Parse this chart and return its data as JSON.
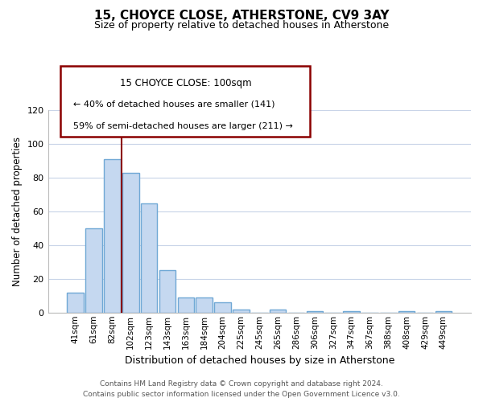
{
  "title": "15, CHOYCE CLOSE, ATHERSTONE, CV9 3AY",
  "subtitle": "Size of property relative to detached houses in Atherstone",
  "xlabel": "Distribution of detached houses by size in Atherstone",
  "ylabel": "Number of detached properties",
  "bar_labels": [
    "41sqm",
    "61sqm",
    "82sqm",
    "102sqm",
    "123sqm",
    "143sqm",
    "163sqm",
    "184sqm",
    "204sqm",
    "225sqm",
    "245sqm",
    "265sqm",
    "286sqm",
    "306sqm",
    "327sqm",
    "347sqm",
    "367sqm",
    "388sqm",
    "408sqm",
    "429sqm",
    "449sqm"
  ],
  "bar_values": [
    12,
    50,
    91,
    83,
    65,
    25,
    9,
    9,
    6,
    2,
    0,
    2,
    0,
    1,
    0,
    1,
    0,
    0,
    1,
    0,
    1
  ],
  "bar_color": "#c5d8f0",
  "bar_edge_color": "#6fa8d5",
  "bar_linewidth": 1.0,
  "vline_x_index": 2,
  "vline_color": "#8b0000",
  "ylim": [
    0,
    120
  ],
  "yticks": [
    0,
    20,
    40,
    60,
    80,
    100,
    120
  ],
  "annotation_title": "15 CHOYCE CLOSE: 100sqm",
  "annotation_line1": "← 40% of detached houses are smaller (141)",
  "annotation_line2": "59% of semi-detached houses are larger (211) →",
  "footer_line1": "Contains HM Land Registry data © Crown copyright and database right 2024.",
  "footer_line2": "Contains public sector information licensed under the Open Government Licence v3.0.",
  "background_color": "#ffffff",
  "grid_color": "#c8d4e8",
  "title_fontsize": 11,
  "subtitle_fontsize": 9
}
